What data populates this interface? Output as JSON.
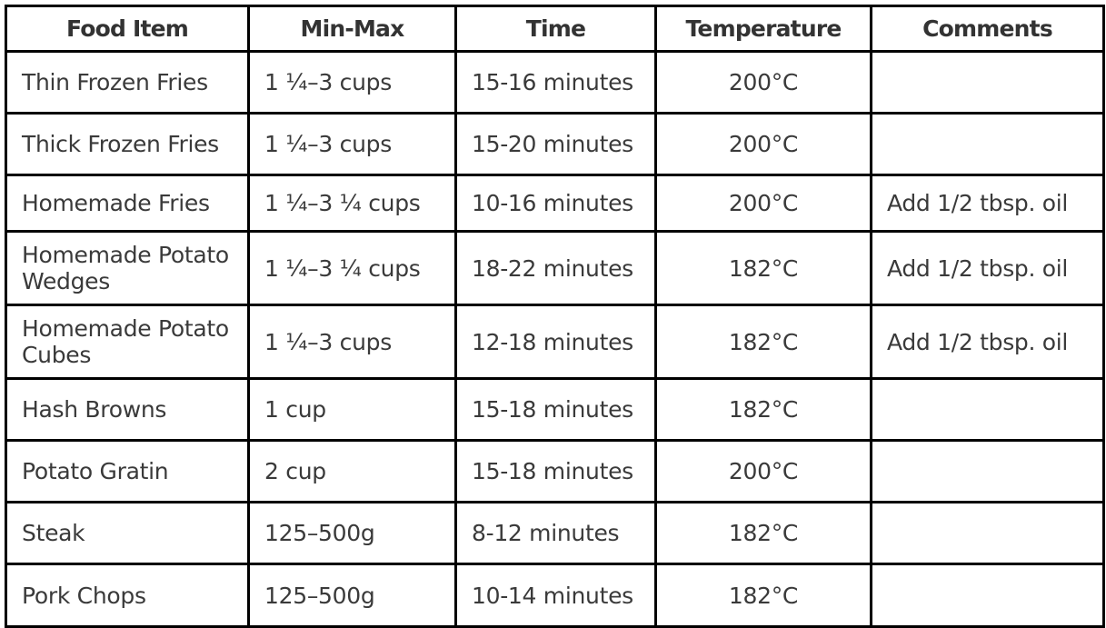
{
  "table": {
    "headers": [
      "Food Item",
      "Min-Max",
      "Time",
      "Temperature",
      "Comments"
    ],
    "rows": [
      {
        "food": "Thin Frozen Fries",
        "amount": "1 ¼–3 cups",
        "time": "15-16 minutes",
        "temperature": "200°C",
        "comments": ""
      },
      {
        "food": "Thick Frozen Fries",
        "amount": "1 ¼–3 cups",
        "time": "15-20 minutes",
        "temperature": "200°C",
        "comments": ""
      },
      {
        "food": "Homemade Fries",
        "amount": "1 ¼–3 ¼ cups",
        "time": "10-16 minutes",
        "temperature": "200°C",
        "comments": "Add 1/2 tbsp. oil"
      },
      {
        "food": "Homemade Potato Wedges",
        "amount": "1 ¼–3 ¼ cups",
        "time": "18-22 minutes",
        "temperature": "182°C",
        "comments": "Add 1/2 tbsp. oil"
      },
      {
        "food": "Homemade Potato Cubes",
        "amount": "1 ¼–3 cups",
        "time": "12-18 minutes",
        "temperature": "182°C",
        "comments": "Add 1/2 tbsp. oil"
      },
      {
        "food": "Hash Browns",
        "amount": "1 cup",
        "time": "15-18 minutes",
        "temperature": "182°C",
        "comments": ""
      },
      {
        "food": "Potato Gratin",
        "amount": "2 cup",
        "time": "15-18 minutes",
        "temperature": "200°C",
        "comments": ""
      },
      {
        "food": "Steak",
        "amount": "125–500g",
        "time": "8-12 minutes",
        "temperature": "182°C",
        "comments": ""
      },
      {
        "food": "Pork Chops",
        "amount": "125–500g",
        "time": "10-14 minutes",
        "temperature": "182°C",
        "comments": ""
      }
    ]
  },
  "colors": {
    "text": "#3a3a3a",
    "border": "#000000",
    "background": "#ffffff"
  }
}
